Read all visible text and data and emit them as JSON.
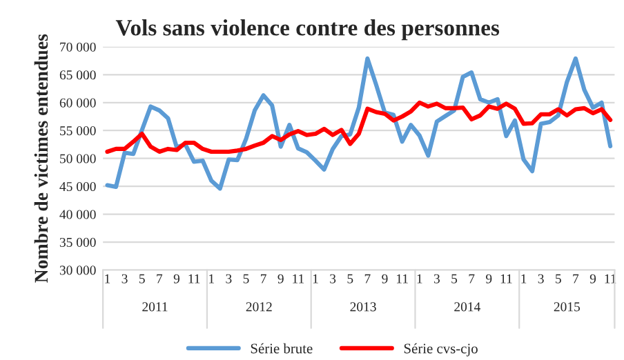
{
  "chart_data": {
    "type": "line",
    "title": "Vols sans violence contre des personnes",
    "ylabel": "Nombre de victimes entendues",
    "categories": [
      "1",
      null,
      "3",
      null,
      "5",
      null,
      "7",
      null,
      "9",
      null,
      "11",
      null,
      "1",
      null,
      "3",
      null,
      "5",
      null,
      "7",
      null,
      "9",
      null,
      "11",
      null,
      "1",
      null,
      "3",
      null,
      "5",
      null,
      "7",
      null,
      "9",
      null,
      "11",
      null,
      "1",
      null,
      "3",
      null,
      "5",
      null,
      "7",
      null,
      "9",
      null,
      "11",
      null,
      "1",
      null,
      "3",
      null,
      "5",
      null,
      "7",
      null,
      "9",
      null,
      "11"
    ],
    "annotations": [
      "2011",
      "2012",
      "2013",
      "2014",
      "2015"
    ],
    "series": [
      {
        "name": "Série brute",
        "color": "#5b9bd5",
        "values": [
          45200,
          44900,
          51000,
          50800,
          55100,
          59300,
          58600,
          57200,
          52000,
          52500,
          49400,
          49600,
          46000,
          44600,
          49800,
          49700,
          53500,
          58600,
          61300,
          59500,
          52100,
          56000,
          51800,
          51100,
          49600,
          48000,
          51700,
          54000,
          54300,
          59100,
          67900,
          63200,
          58200,
          57800,
          53000,
          56000,
          54100,
          50500,
          56600,
          57600,
          58600,
          64600,
          65400,
          60600,
          60000,
          60600,
          54000,
          56800,
          49800,
          47700,
          56200,
          56500,
          57700,
          63700,
          67900,
          62300,
          59100,
          60000,
          52200
        ]
      },
      {
        "name": "Série cvs-cjo",
        "color": "#ff0000",
        "values": [
          51200,
          51700,
          51700,
          53000,
          54400,
          52100,
          51200,
          51700,
          51500,
          52800,
          52800,
          51700,
          51200,
          51200,
          51200,
          51400,
          51700,
          52300,
          52800,
          54000,
          53300,
          54300,
          54900,
          54200,
          54400,
          55300,
          54200,
          55100,
          52600,
          54400,
          58900,
          58300,
          58000,
          56800,
          57500,
          58400,
          60000,
          59300,
          59800,
          59000,
          59000,
          59100,
          57000,
          57700,
          59300,
          58900,
          59800,
          58900,
          56200,
          56300,
          57900,
          57900,
          58800,
          57700,
          58800,
          59000,
          58100,
          58800,
          56900
        ]
      }
    ],
    "ylim": [
      30000,
      70000
    ],
    "yticks": [
      {
        "value": 30000,
        "label": "30 000"
      },
      {
        "value": 35000,
        "label": "35 000"
      },
      {
        "value": 40000,
        "label": "40 000"
      },
      {
        "value": 45000,
        "label": "45 000"
      },
      {
        "value": 50000,
        "label": "50 000"
      },
      {
        "value": 55000,
        "label": "55 000"
      },
      {
        "value": 60000,
        "label": "60 000"
      },
      {
        "value": 65000,
        "label": "65 000"
      },
      {
        "value": 70000,
        "label": "70 000"
      }
    ],
    "grid": "y",
    "legend": "bottom",
    "marker": "none",
    "line_style": "solid"
  }
}
